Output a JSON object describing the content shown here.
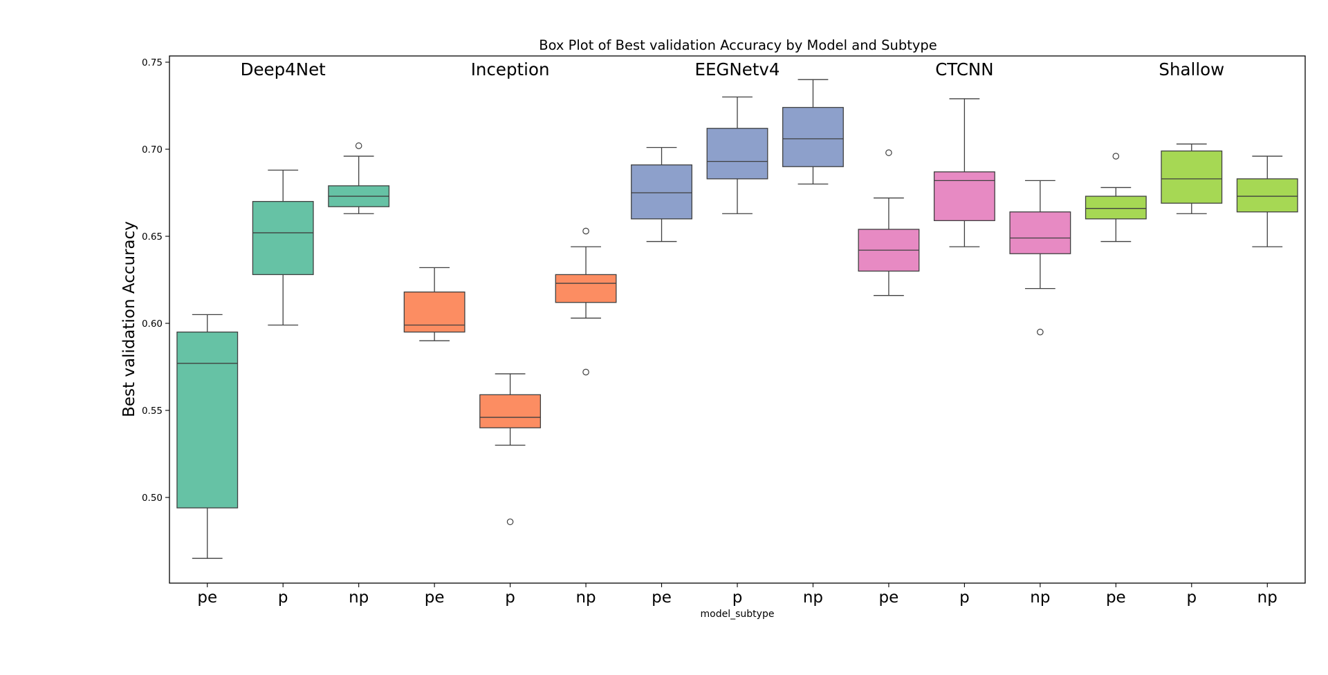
{
  "chart_data": {
    "type": "box",
    "title": "Box Plot of Best validation Accuracy by Model and Subtype",
    "xlabel": "model_subtype",
    "ylabel": "Best validation Accuracy",
    "ylim": [
      0.45,
      0.753
    ],
    "yticks": [
      0.5,
      0.55,
      0.6,
      0.65,
      0.7,
      0.75
    ],
    "ytick_labels": [
      "0.50",
      "0.55",
      "0.60",
      "0.65",
      "0.70",
      "0.75"
    ],
    "grid": false,
    "categories": [
      "pe",
      "p",
      "np",
      "pe",
      "p",
      "np",
      "pe",
      "p",
      "np",
      "pe",
      "p",
      "np",
      "pe",
      "p",
      "np"
    ],
    "groups": [
      {
        "name": "Deep4Net",
        "color": "#66c2a5"
      },
      {
        "name": "Inception",
        "color": "#fc8d62"
      },
      {
        "name": "EEGNetv4",
        "color": "#8da0cb"
      },
      {
        "name": "CTCNN",
        "color": "#e78ac3"
      },
      {
        "name": "Shallow",
        "color": "#a6d854"
      }
    ],
    "boxes": [
      {
        "group": "Deep4Net",
        "subtype": "pe",
        "whislo": 0.465,
        "q1": 0.494,
        "med": 0.577,
        "q3": 0.595,
        "whishi": 0.605,
        "fliers": []
      },
      {
        "group": "Deep4Net",
        "subtype": "p",
        "whislo": 0.599,
        "q1": 0.628,
        "med": 0.652,
        "q3": 0.67,
        "whishi": 0.688,
        "fliers": []
      },
      {
        "group": "Deep4Net",
        "subtype": "np",
        "whislo": 0.663,
        "q1": 0.667,
        "med": 0.673,
        "q3": 0.679,
        "whishi": 0.696,
        "fliers": [
          0.702
        ]
      },
      {
        "group": "Inception",
        "subtype": "pe",
        "whislo": 0.59,
        "q1": 0.595,
        "med": 0.599,
        "q3": 0.618,
        "whishi": 0.632,
        "fliers": []
      },
      {
        "group": "Inception",
        "subtype": "p",
        "whislo": 0.53,
        "q1": 0.54,
        "med": 0.546,
        "q3": 0.559,
        "whishi": 0.571,
        "fliers": [
          0.486
        ]
      },
      {
        "group": "Inception",
        "subtype": "np",
        "whislo": 0.603,
        "q1": 0.612,
        "med": 0.623,
        "q3": 0.628,
        "whishi": 0.644,
        "fliers": [
          0.653,
          0.572
        ]
      },
      {
        "group": "EEGNetv4",
        "subtype": "pe",
        "whislo": 0.647,
        "q1": 0.66,
        "med": 0.675,
        "q3": 0.691,
        "whishi": 0.701,
        "fliers": []
      },
      {
        "group": "EEGNetv4",
        "subtype": "p",
        "whislo": 0.663,
        "q1": 0.683,
        "med": 0.693,
        "q3": 0.712,
        "whishi": 0.73,
        "fliers": []
      },
      {
        "group": "EEGNetv4",
        "subtype": "np",
        "whislo": 0.68,
        "q1": 0.69,
        "med": 0.706,
        "q3": 0.724,
        "whishi": 0.74,
        "fliers": []
      },
      {
        "group": "CTCNN",
        "subtype": "pe",
        "whislo": 0.616,
        "q1": 0.63,
        "med": 0.642,
        "q3": 0.654,
        "whishi": 0.672,
        "fliers": [
          0.698
        ]
      },
      {
        "group": "CTCNN",
        "subtype": "p",
        "whislo": 0.644,
        "q1": 0.659,
        "med": 0.682,
        "q3": 0.687,
        "whishi": 0.729,
        "fliers": []
      },
      {
        "group": "CTCNN",
        "subtype": "np",
        "whislo": 0.62,
        "q1": 0.64,
        "med": 0.649,
        "q3": 0.664,
        "whishi": 0.682,
        "fliers": [
          0.595
        ]
      },
      {
        "group": "Shallow",
        "subtype": "pe",
        "whislo": 0.647,
        "q1": 0.66,
        "med": 0.666,
        "q3": 0.673,
        "whishi": 0.678,
        "fliers": [
          0.696
        ]
      },
      {
        "group": "Shallow",
        "subtype": "p",
        "whislo": 0.663,
        "q1": 0.669,
        "med": 0.683,
        "q3": 0.699,
        "whishi": 0.703,
        "fliers": []
      },
      {
        "group": "Shallow",
        "subtype": "np",
        "whislo": 0.644,
        "q1": 0.664,
        "med": 0.673,
        "q3": 0.683,
        "whishi": 0.696,
        "fliers": []
      }
    ]
  }
}
